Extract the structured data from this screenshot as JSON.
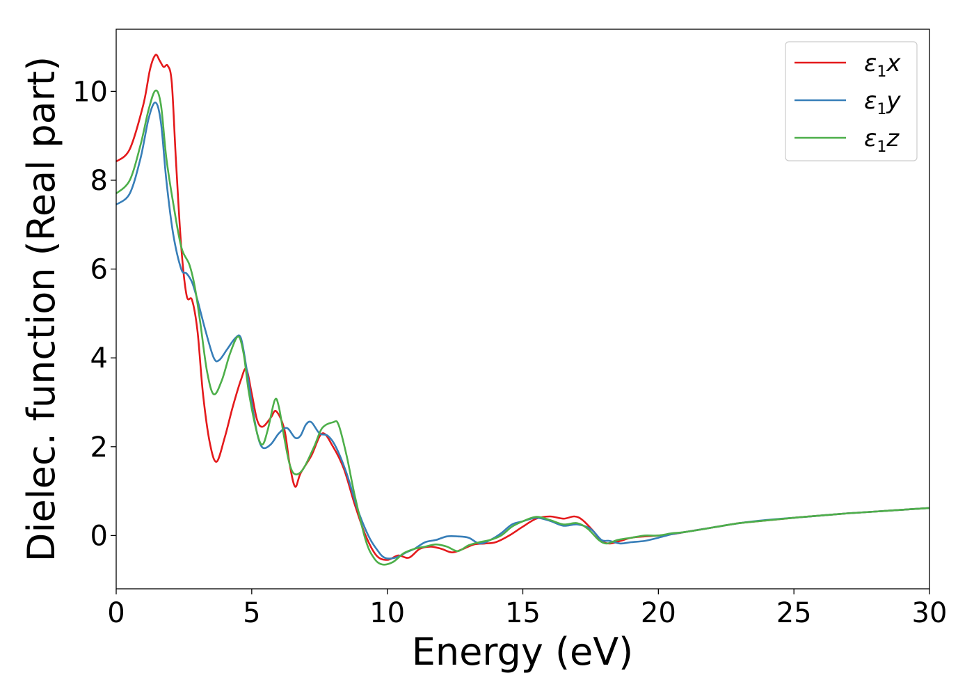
{
  "chart_data": {
    "type": "line",
    "xlabel": "Energy (eV)",
    "ylabel": "Dielec. function (Real part)",
    "xlim": [
      0,
      30
    ],
    "ylim": [
      -1.2,
      11.4
    ],
    "x_ticks": [
      0,
      5,
      10,
      15,
      20,
      25,
      30
    ],
    "y_ticks": [
      0,
      2,
      4,
      6,
      8,
      10
    ],
    "grid": false,
    "legend_position": "top-right",
    "series": [
      {
        "name": "ε1x",
        "label_base": "ε",
        "label_sub": "1",
        "label_suffix": "x",
        "color": "#e41a1c",
        "points": [
          [
            0,
            8.42
          ],
          [
            0.5,
            8.7
          ],
          [
            1.0,
            9.7
          ],
          [
            1.25,
            10.5
          ],
          [
            1.45,
            10.82
          ],
          [
            1.6,
            10.7
          ],
          [
            1.75,
            10.55
          ],
          [
            1.9,
            10.58
          ],
          [
            2.05,
            10.2
          ],
          [
            2.2,
            8.5
          ],
          [
            2.4,
            6.5
          ],
          [
            2.6,
            5.4
          ],
          [
            2.8,
            5.3
          ],
          [
            3.0,
            4.6
          ],
          [
            3.2,
            3.2
          ],
          [
            3.45,
            2.1
          ],
          [
            3.7,
            1.66
          ],
          [
            4.0,
            2.2
          ],
          [
            4.3,
            2.9
          ],
          [
            4.6,
            3.5
          ],
          [
            4.8,
            3.75
          ],
          [
            5.0,
            3.2
          ],
          [
            5.2,
            2.6
          ],
          [
            5.4,
            2.45
          ],
          [
            5.7,
            2.65
          ],
          [
            5.9,
            2.8
          ],
          [
            6.2,
            2.4
          ],
          [
            6.4,
            1.6
          ],
          [
            6.6,
            1.1
          ],
          [
            6.8,
            1.4
          ],
          [
            7.2,
            1.8
          ],
          [
            7.6,
            2.3
          ],
          [
            8.0,
            2.0
          ],
          [
            8.4,
            1.5
          ],
          [
            8.8,
            0.7
          ],
          [
            9.2,
            0.0
          ],
          [
            9.6,
            -0.45
          ],
          [
            10.0,
            -0.55
          ],
          [
            10.4,
            -0.45
          ],
          [
            10.8,
            -0.5
          ],
          [
            11.2,
            -0.3
          ],
          [
            11.6,
            -0.25
          ],
          [
            12.0,
            -0.3
          ],
          [
            12.4,
            -0.38
          ],
          [
            12.8,
            -0.3
          ],
          [
            13.2,
            -0.2
          ],
          [
            13.6,
            -0.18
          ],
          [
            14.0,
            -0.15
          ],
          [
            14.5,
            0.0
          ],
          [
            15.0,
            0.2
          ],
          [
            15.5,
            0.38
          ],
          [
            16.0,
            0.43
          ],
          [
            16.5,
            0.38
          ],
          [
            16.9,
            0.43
          ],
          [
            17.2,
            0.35
          ],
          [
            17.6,
            0.1
          ],
          [
            17.9,
            -0.12
          ],
          [
            18.2,
            -0.18
          ],
          [
            18.6,
            -0.12
          ],
          [
            19.0,
            -0.05
          ],
          [
            19.5,
            -0.02
          ],
          [
            20.0,
            0.0
          ],
          [
            20.5,
            0.03
          ],
          [
            21.0,
            0.08
          ],
          [
            22.0,
            0.18
          ],
          [
            23.0,
            0.28
          ],
          [
            24.0,
            0.34
          ],
          [
            25.0,
            0.4
          ],
          [
            26.0,
            0.45
          ],
          [
            27.0,
            0.5
          ],
          [
            28.0,
            0.54
          ],
          [
            29.0,
            0.58
          ],
          [
            30.0,
            0.62
          ]
        ]
      },
      {
        "name": "ε1y",
        "label_base": "ε",
        "label_sub": "1",
        "label_suffix": "y",
        "color": "#377eb8",
        "points": [
          [
            0,
            7.45
          ],
          [
            0.5,
            7.7
          ],
          [
            0.9,
            8.5
          ],
          [
            1.2,
            9.4
          ],
          [
            1.45,
            9.75
          ],
          [
            1.65,
            9.3
          ],
          [
            1.85,
            8.0
          ],
          [
            2.1,
            6.8
          ],
          [
            2.4,
            6.0
          ],
          [
            2.6,
            5.9
          ],
          [
            2.8,
            5.7
          ],
          [
            3.0,
            5.3
          ],
          [
            3.3,
            4.6
          ],
          [
            3.6,
            4.0
          ],
          [
            3.8,
            3.95
          ],
          [
            4.1,
            4.2
          ],
          [
            4.4,
            4.45
          ],
          [
            4.6,
            4.45
          ],
          [
            4.8,
            3.8
          ],
          [
            5.0,
            3.0
          ],
          [
            5.2,
            2.3
          ],
          [
            5.4,
            1.98
          ],
          [
            5.7,
            2.05
          ],
          [
            6.0,
            2.3
          ],
          [
            6.3,
            2.42
          ],
          [
            6.6,
            2.2
          ],
          [
            6.8,
            2.25
          ],
          [
            7.0,
            2.5
          ],
          [
            7.2,
            2.55
          ],
          [
            7.5,
            2.3
          ],
          [
            7.8,
            2.25
          ],
          [
            8.1,
            2.0
          ],
          [
            8.5,
            1.4
          ],
          [
            8.9,
            0.6
          ],
          [
            9.3,
            0.0
          ],
          [
            9.6,
            -0.3
          ],
          [
            9.9,
            -0.5
          ],
          [
            10.3,
            -0.5
          ],
          [
            10.7,
            -0.38
          ],
          [
            11.0,
            -0.3
          ],
          [
            11.4,
            -0.15
          ],
          [
            11.8,
            -0.1
          ],
          [
            12.2,
            -0.02
          ],
          [
            12.6,
            -0.02
          ],
          [
            13.0,
            -0.05
          ],
          [
            13.4,
            -0.18
          ],
          [
            13.8,
            -0.1
          ],
          [
            14.2,
            0.05
          ],
          [
            14.6,
            0.25
          ],
          [
            15.0,
            0.32
          ],
          [
            15.5,
            0.4
          ],
          [
            16.0,
            0.33
          ],
          [
            16.5,
            0.22
          ],
          [
            17.0,
            0.25
          ],
          [
            17.5,
            0.15
          ],
          [
            17.9,
            -0.1
          ],
          [
            18.2,
            -0.12
          ],
          [
            18.6,
            -0.18
          ],
          [
            19.0,
            -0.15
          ],
          [
            19.5,
            -0.12
          ],
          [
            20.0,
            -0.05
          ],
          [
            20.5,
            0.03
          ],
          [
            21.0,
            0.08
          ],
          [
            22.0,
            0.18
          ],
          [
            23.0,
            0.28
          ],
          [
            24.0,
            0.35
          ],
          [
            25.0,
            0.4
          ],
          [
            26.0,
            0.45
          ],
          [
            27.0,
            0.5
          ],
          [
            28.0,
            0.54
          ],
          [
            29.0,
            0.58
          ],
          [
            30.0,
            0.62
          ]
        ]
      },
      {
        "name": "ε1z",
        "label_base": "ε",
        "label_sub": "1",
        "label_suffix": "z",
        "color": "#4daf4a",
        "points": [
          [
            0,
            7.7
          ],
          [
            0.5,
            8.0
          ],
          [
            0.9,
            8.8
          ],
          [
            1.2,
            9.6
          ],
          [
            1.45,
            10.02
          ],
          [
            1.65,
            9.7
          ],
          [
            1.85,
            8.5
          ],
          [
            2.1,
            7.5
          ],
          [
            2.4,
            6.5
          ],
          [
            2.7,
            6.1
          ],
          [
            2.9,
            5.6
          ],
          [
            3.1,
            4.8
          ],
          [
            3.35,
            3.7
          ],
          [
            3.6,
            3.18
          ],
          [
            3.9,
            3.5
          ],
          [
            4.2,
            4.1
          ],
          [
            4.5,
            4.48
          ],
          [
            4.7,
            4.1
          ],
          [
            4.9,
            3.2
          ],
          [
            5.2,
            2.3
          ],
          [
            5.4,
            2.05
          ],
          [
            5.6,
            2.4
          ],
          [
            5.85,
            3.05
          ],
          [
            6.0,
            2.9
          ],
          [
            6.2,
            2.2
          ],
          [
            6.4,
            1.6
          ],
          [
            6.6,
            1.38
          ],
          [
            6.9,
            1.5
          ],
          [
            7.3,
            2.0
          ],
          [
            7.6,
            2.42
          ],
          [
            8.0,
            2.55
          ],
          [
            8.2,
            2.5
          ],
          [
            8.5,
            1.8
          ],
          [
            8.8,
            0.9
          ],
          [
            9.2,
            -0.1
          ],
          [
            9.5,
            -0.5
          ],
          [
            9.8,
            -0.65
          ],
          [
            10.2,
            -0.6
          ],
          [
            10.6,
            -0.4
          ],
          [
            11.0,
            -0.3
          ],
          [
            11.4,
            -0.25
          ],
          [
            11.8,
            -0.2
          ],
          [
            12.2,
            -0.25
          ],
          [
            12.6,
            -0.35
          ],
          [
            13.0,
            -0.22
          ],
          [
            13.4,
            -0.15
          ],
          [
            13.8,
            -0.1
          ],
          [
            14.2,
            0.0
          ],
          [
            14.6,
            0.2
          ],
          [
            15.0,
            0.32
          ],
          [
            15.5,
            0.42
          ],
          [
            16.0,
            0.35
          ],
          [
            16.5,
            0.25
          ],
          [
            17.0,
            0.28
          ],
          [
            17.4,
            0.15
          ],
          [
            17.8,
            -0.1
          ],
          [
            18.1,
            -0.18
          ],
          [
            18.5,
            -0.1
          ],
          [
            19.0,
            -0.05
          ],
          [
            19.5,
            0.0
          ],
          [
            20.0,
            0.0
          ],
          [
            20.5,
            0.05
          ],
          [
            21.0,
            0.08
          ],
          [
            22.0,
            0.18
          ],
          [
            23.0,
            0.28
          ],
          [
            24.0,
            0.34
          ],
          [
            25.0,
            0.4
          ],
          [
            26.0,
            0.45
          ],
          [
            27.0,
            0.5
          ],
          [
            28.0,
            0.54
          ],
          [
            29.0,
            0.58
          ],
          [
            30.0,
            0.62
          ]
        ]
      }
    ]
  }
}
